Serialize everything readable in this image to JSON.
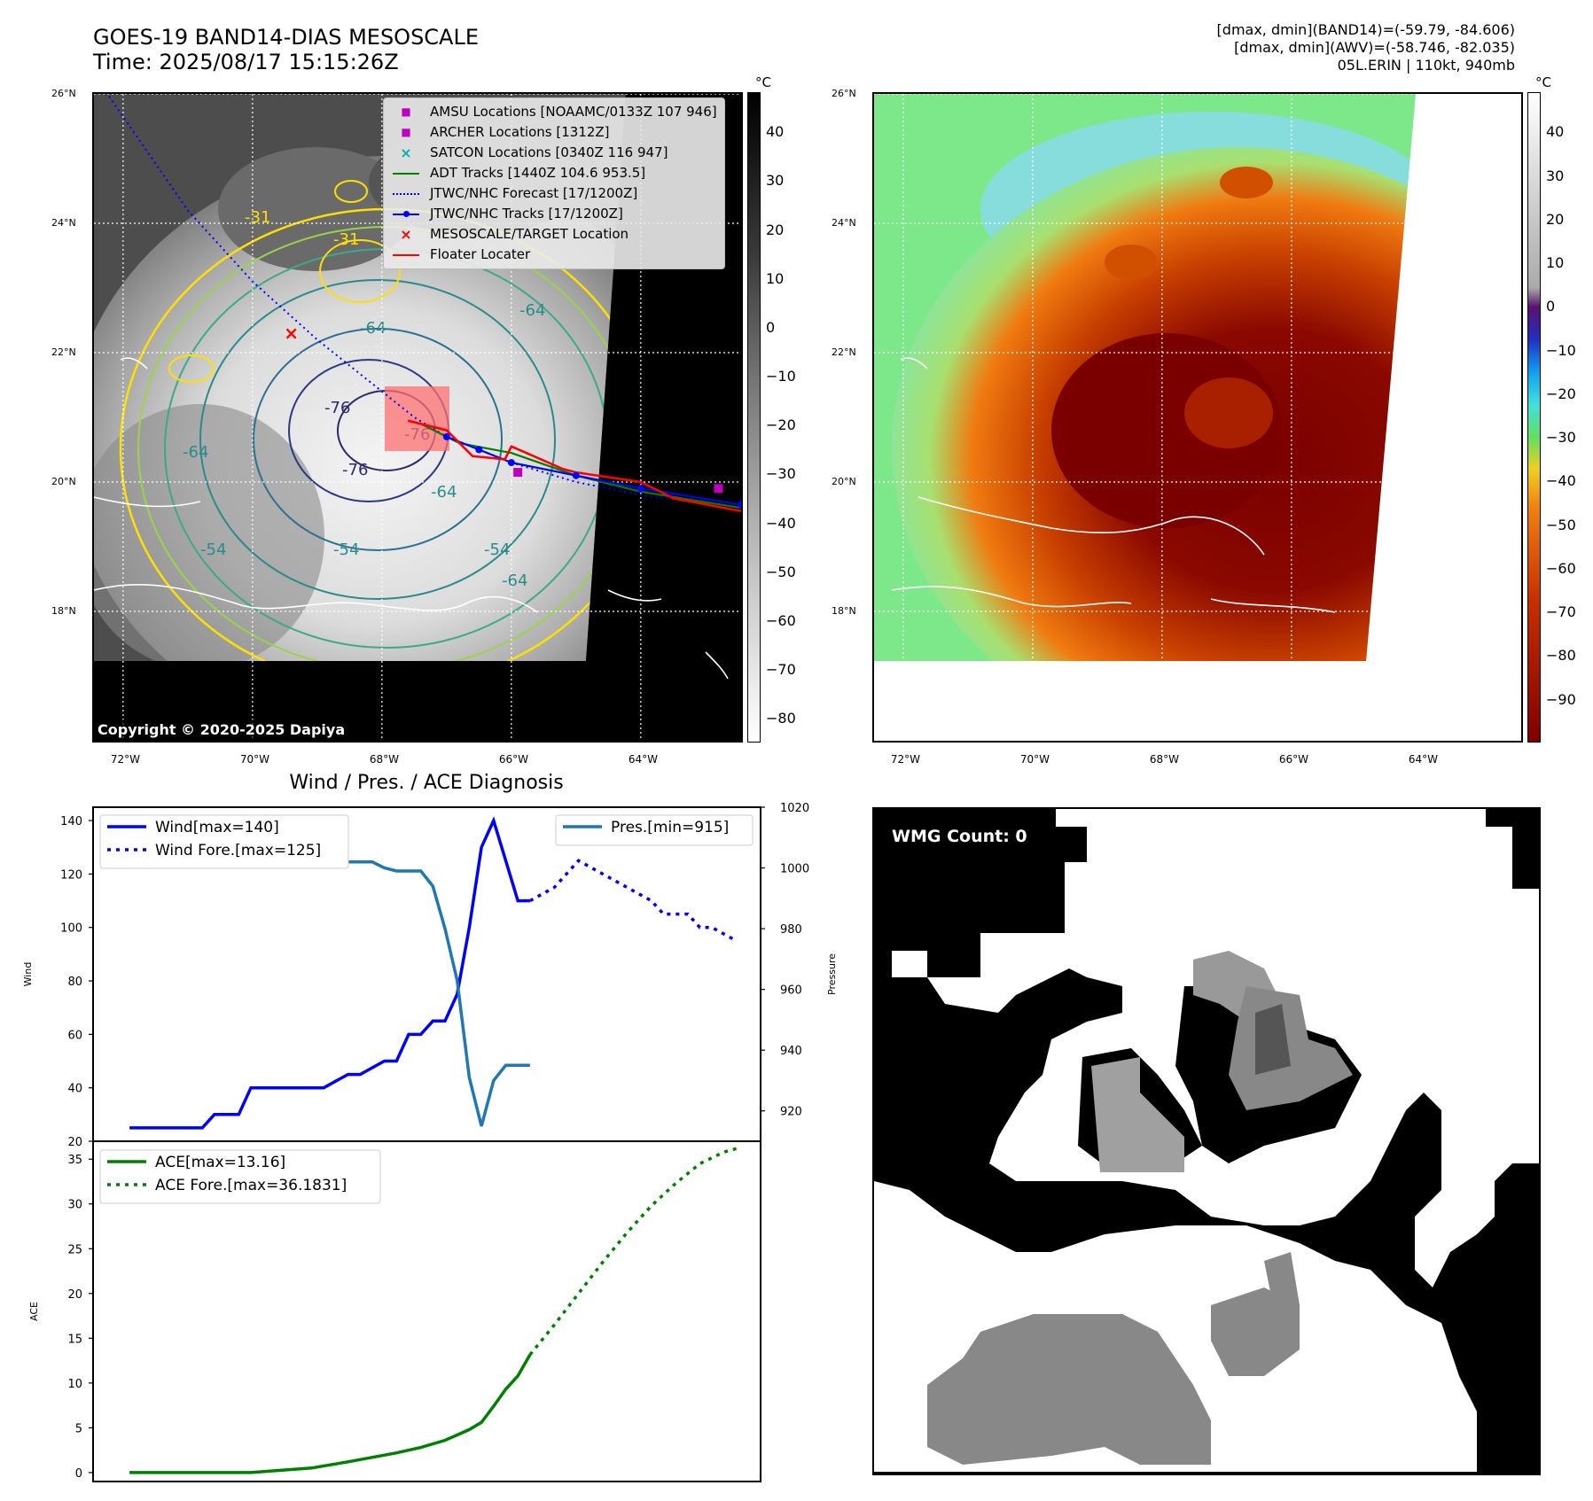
{
  "header": {
    "title_line1": "GOES-19 BAND14-DIAS MESOSCALE",
    "title_line2": "Time: 2025/08/17 15:15:26Z",
    "info_line1": "[dmax, dmin](BAND14)=(-59.79, -84.606)",
    "info_line2": "[dmax, dmin](AWV)=(-58.746, -82.035)",
    "info_line3": "05L.ERIN | 110kt, 940mb"
  },
  "map": {
    "lat_labels": [
      "26°N",
      "24°N",
      "22°N",
      "20°N",
      "18°N"
    ],
    "lat_values": [
      26,
      24,
      22,
      20,
      18
    ],
    "lon_labels": [
      "72°W",
      "70°W",
      "68°W",
      "66°W",
      "64°W"
    ],
    "lon_values": [
      -72,
      -70,
      -68,
      -66,
      -64
    ],
    "extent": {
      "lon_min": -72.45,
      "lon_max": -62.45,
      "lat_min": 16.0,
      "lat_max": 26.0
    },
    "contour_labels": [
      "-31",
      "-31",
      "-64",
      "-64",
      "-64",
      "-76",
      "-76",
      "-76",
      "-64",
      "-54",
      "-54",
      "-64",
      "-54"
    ],
    "copyright": "Copyright © 2020-2025 Dapiya",
    "colorbar_gray": {
      "unit": "°C",
      "ticks": [
        "40",
        "30",
        "20",
        "10",
        "0",
        "−10",
        "−20",
        "−30",
        "−40",
        "−50",
        "−60",
        "−70",
        "−80"
      ],
      "range": [
        48,
        -85
      ]
    },
    "colorbar_color": {
      "unit": "°C",
      "ticks": [
        "40",
        "30",
        "20",
        "10",
        "0",
        "−10",
        "−20",
        "−30",
        "−40",
        "−50",
        "−60",
        "−70",
        "−80",
        "−90"
      ],
      "range": [
        49,
        -100
      ]
    },
    "legend": [
      {
        "label": "AMSU Locations [NOAAMC/0133Z 107 946]",
        "symbol": "■",
        "color": "#c000c0"
      },
      {
        "label": "ARCHER Locations [1312Z]",
        "symbol": "■",
        "color": "#c000c0"
      },
      {
        "label": "SATCON Locations [0340Z 116 947]",
        "symbol": "×",
        "color": "#00b0b0"
      },
      {
        "label": "ADT Tracks [1440Z 104.6 953.5]",
        "symbol": "line",
        "color": "#008000"
      },
      {
        "label": "JTWC/NHC Forecast [17/1200Z]",
        "symbol": "dotted",
        "color": "#0000ff"
      },
      {
        "label": "JTWC/NHC Tracks [17/1200Z]",
        "symbol": "line-dot",
        "color": "#0000ff"
      },
      {
        "label": "MESOSCALE/TARGET Location",
        "symbol": "×",
        "color": "#ff0000"
      },
      {
        "label": "Floater Locater",
        "symbol": "line",
        "color": "#ff0000"
      }
    ],
    "forecast_track": [
      [
        -72.45,
        26.3
      ],
      [
        -71.0,
        24.2
      ],
      [
        -70.0,
        23.1
      ],
      [
        -69.0,
        22.2
      ],
      [
        -68.0,
        21.4
      ],
      [
        -67.5,
        21.0
      ],
      [
        -67.0,
        20.7
      ],
      [
        -66.0,
        20.3
      ],
      [
        -65.0,
        20.0
      ],
      [
        -64.0,
        19.8
      ],
      [
        -62.45,
        19.6
      ]
    ],
    "nhc_track": [
      [
        -67.0,
        20.7
      ],
      [
        -66.5,
        20.5
      ],
      [
        -66.0,
        20.3
      ],
      [
        -65.0,
        20.1
      ],
      [
        -64.0,
        19.9
      ],
      [
        -62.45,
        19.65
      ]
    ],
    "adt_track": [
      [
        -67.4,
        20.9
      ],
      [
        -66.8,
        20.6
      ],
      [
        -66.0,
        20.45
      ],
      [
        -65.0,
        20.1
      ],
      [
        -64.0,
        19.85
      ],
      [
        -62.45,
        19.6
      ]
    ],
    "floater_track": [
      [
        -67.6,
        20.95
      ],
      [
        -67.0,
        20.8
      ],
      [
        -66.6,
        20.4
      ],
      [
        -66.1,
        20.35
      ],
      [
        -66.0,
        20.55
      ],
      [
        -65.2,
        20.2
      ],
      [
        -65.0,
        20.15
      ],
      [
        -64.0,
        20.0
      ],
      [
        -63.5,
        19.75
      ],
      [
        -62.45,
        19.55
      ]
    ],
    "amsu_loc": [
      -62.8,
      19.9
    ],
    "archer_loc": [
      -65.9,
      20.15
    ],
    "target_loc": [
      -69.4,
      22.3
    ]
  },
  "chart_data": [
    {
      "type": "line",
      "title": "Wind / Pres. / ACE Diagnosis",
      "xlabel": "",
      "ylabel": "Wind",
      "y2label": "Pressure",
      "ylim": [
        20,
        145
      ],
      "y2lim": [
        910,
        1020
      ],
      "yticks": [
        "140",
        "120",
        "100",
        "80",
        "60",
        "40",
        "20"
      ],
      "y2ticks": [
        "1020",
        "1000",
        "980",
        "960",
        "940",
        "920"
      ],
      "series": [
        {
          "name": "Wind[max=140]",
          "style": "solid",
          "color": "#0000ff",
          "axis": "left",
          "x": [
            0,
            6,
            7,
            9,
            10,
            16,
            18,
            19,
            21,
            22,
            23,
            24,
            25,
            26,
            27,
            28,
            29,
            30,
            31,
            32,
            33
          ],
          "values": [
            25,
            25,
            30,
            30,
            40,
            40,
            45,
            45,
            50,
            50,
            60,
            60,
            65,
            65,
            75,
            100,
            130,
            140,
            125,
            110,
            110
          ]
        },
        {
          "name": "Wind Fore.[max=125]",
          "style": "dotted",
          "color": "#0000ff",
          "axis": "left",
          "x": [
            33,
            35,
            37,
            39,
            41,
            43,
            44,
            46,
            47,
            48,
            50
          ],
          "values": [
            110,
            115,
            125,
            120,
            115,
            110,
            105,
            105,
            100,
            100,
            95
          ]
        },
        {
          "name": "Pres.[min=915]",
          "style": "solid",
          "color": "#1f77b4",
          "axis": "right",
          "x": [
            0,
            1,
            2,
            3,
            4,
            5,
            7,
            9,
            10,
            12,
            13,
            14,
            15,
            16,
            17,
            19,
            20,
            21,
            22,
            24,
            25,
            26,
            27,
            28,
            29,
            30,
            31,
            32,
            33
          ],
          "values": [
            1016,
            1016,
            1008,
            1007,
            1006,
            1006,
            1006,
            1006,
            1005,
            1005,
            1003,
            1006,
            1006,
            1004,
            1002,
            1002,
            1002,
            1000,
            999,
            999,
            994,
            980,
            963,
            931,
            915,
            930,
            935,
            935,
            935
          ]
        }
      ]
    },
    {
      "type": "line",
      "xlabel": "",
      "ylabel": "ACE",
      "ylim": [
        -1,
        37
      ],
      "yticks": [
        "35",
        "30",
        "25",
        "20",
        "15",
        "10",
        "5",
        "0"
      ],
      "series": [
        {
          "name": "ACE[max=13.16]",
          "style": "solid",
          "color": "#008000",
          "x": [
            0,
            5,
            10,
            15,
            18,
            22,
            24,
            26,
            27,
            28,
            29,
            30,
            31,
            32,
            33
          ],
          "values": [
            0,
            0,
            0,
            0.5,
            1.2,
            2.2,
            2.8,
            3.6,
            4.2,
            4.8,
            5.6,
            7.4,
            9.3,
            10.8,
            13.16
          ]
        },
        {
          "name": "ACE Fore.[max=36.1831]",
          "style": "dotted",
          "color": "#008000",
          "x": [
            33,
            35,
            37,
            39,
            41,
            43,
            45,
            47,
            49,
            50
          ],
          "values": [
            13.16,
            16.5,
            20.0,
            23.5,
            26.8,
            29.8,
            32.3,
            34.5,
            35.8,
            36.18
          ]
        }
      ]
    }
  ],
  "wmg": {
    "label": "WMG Count: 0"
  }
}
